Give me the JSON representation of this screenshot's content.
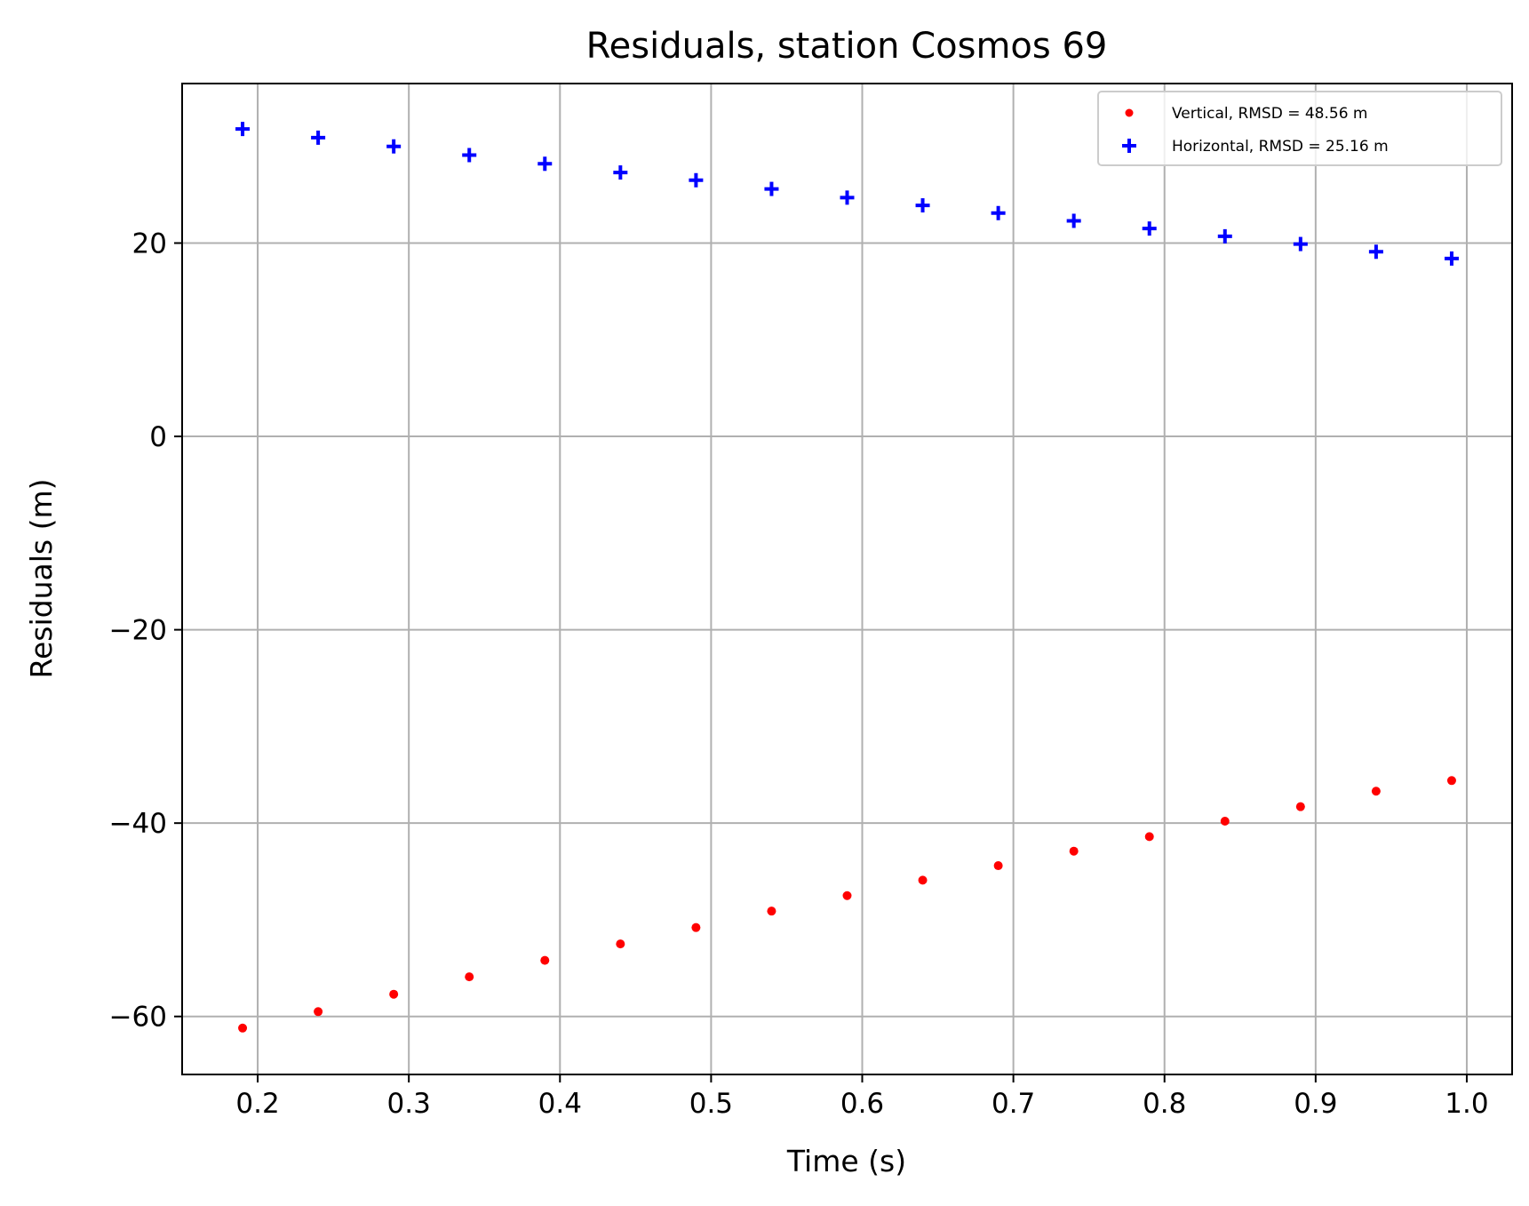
{
  "chart_data": {
    "type": "scatter",
    "title": "Residuals, station Cosmos 69",
    "xlabel": "Time (s)",
    "ylabel": "Residuals (m)",
    "xlim": [
      0.15,
      1.03
    ],
    "ylim": [
      -66,
      36.5
    ],
    "xticks": [
      0.2,
      0.3,
      0.4,
      0.5,
      0.6,
      0.7,
      0.8,
      0.9,
      1.0
    ],
    "xtick_labels": [
      "0.2",
      "0.3",
      "0.4",
      "0.5",
      "0.6",
      "0.7",
      "0.8",
      "0.9",
      "1.0"
    ],
    "yticks": [
      -60,
      -40,
      -20,
      0,
      20
    ],
    "ytick_labels": [
      "−60",
      "−40",
      "−20",
      "0",
      "20"
    ],
    "grid": true,
    "legend_position": "top-right",
    "x": [
      0.19,
      0.24,
      0.29,
      0.34,
      0.39,
      0.44,
      0.49,
      0.54,
      0.59,
      0.64,
      0.69,
      0.74,
      0.79,
      0.84,
      0.89,
      0.94,
      0.99
    ],
    "series": [
      {
        "name": "Vertical, RMSD = 48.56 m",
        "marker": "dot",
        "color": "#ff0000",
        "values": [
          -61.2,
          -59.5,
          -57.7,
          -55.9,
          -54.2,
          -52.5,
          -50.8,
          -49.1,
          -47.5,
          -45.9,
          -44.4,
          -42.9,
          -41.4,
          -39.8,
          -38.3,
          -36.7,
          -35.6
        ]
      },
      {
        "name": "Horizontal, RMSD = 25.16 m",
        "marker": "plus",
        "color": "#0000ff",
        "values": [
          31.8,
          30.9,
          30.0,
          29.1,
          28.2,
          27.3,
          26.5,
          25.6,
          24.7,
          23.9,
          23.1,
          22.3,
          21.5,
          20.7,
          19.9,
          19.1,
          18.4
        ]
      }
    ]
  }
}
